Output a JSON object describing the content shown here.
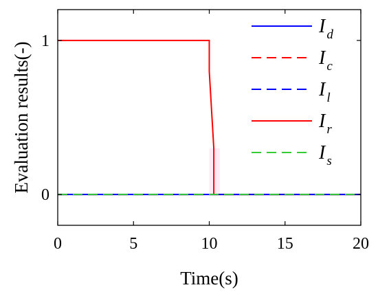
{
  "chart_data": {
    "type": "line",
    "xlabel": "Time(s)",
    "ylabel": "Evaluation results(-)",
    "xlim": [
      0,
      20
    ],
    "ylim": [
      -0.2,
      1.2
    ],
    "xticks": [
      0,
      5,
      10,
      15,
      20
    ],
    "yticks": [
      0,
      1
    ],
    "grid": false,
    "legend_position": "top-right",
    "series": [
      {
        "name_main": "I",
        "name_sub": "d",
        "color": "#0000ff",
        "style": "solid",
        "x": [
          0,
          20
        ],
        "y": [
          0,
          0
        ]
      },
      {
        "name_main": "I",
        "name_sub": "c",
        "color": "#ff0000",
        "style": "dashed",
        "x": [
          0,
          20
        ],
        "y": [
          0,
          0
        ]
      },
      {
        "name_main": "I",
        "name_sub": "l",
        "color": "#0000ff",
        "style": "dashed",
        "x": [
          0,
          20
        ],
        "y": [
          0,
          0
        ]
      },
      {
        "name_main": "I",
        "name_sub": "r",
        "color": "#ff0000",
        "style": "solid",
        "x": [
          0,
          10,
          10,
          10.3,
          10.3,
          20
        ],
        "y": [
          1,
          1,
          0.8,
          0.3,
          0,
          0
        ]
      },
      {
        "name_main": "I",
        "name_sub": "s",
        "color": "#33cc33",
        "style": "dashed",
        "x": [
          0,
          20
        ],
        "y": [
          0,
          0
        ]
      }
    ]
  }
}
